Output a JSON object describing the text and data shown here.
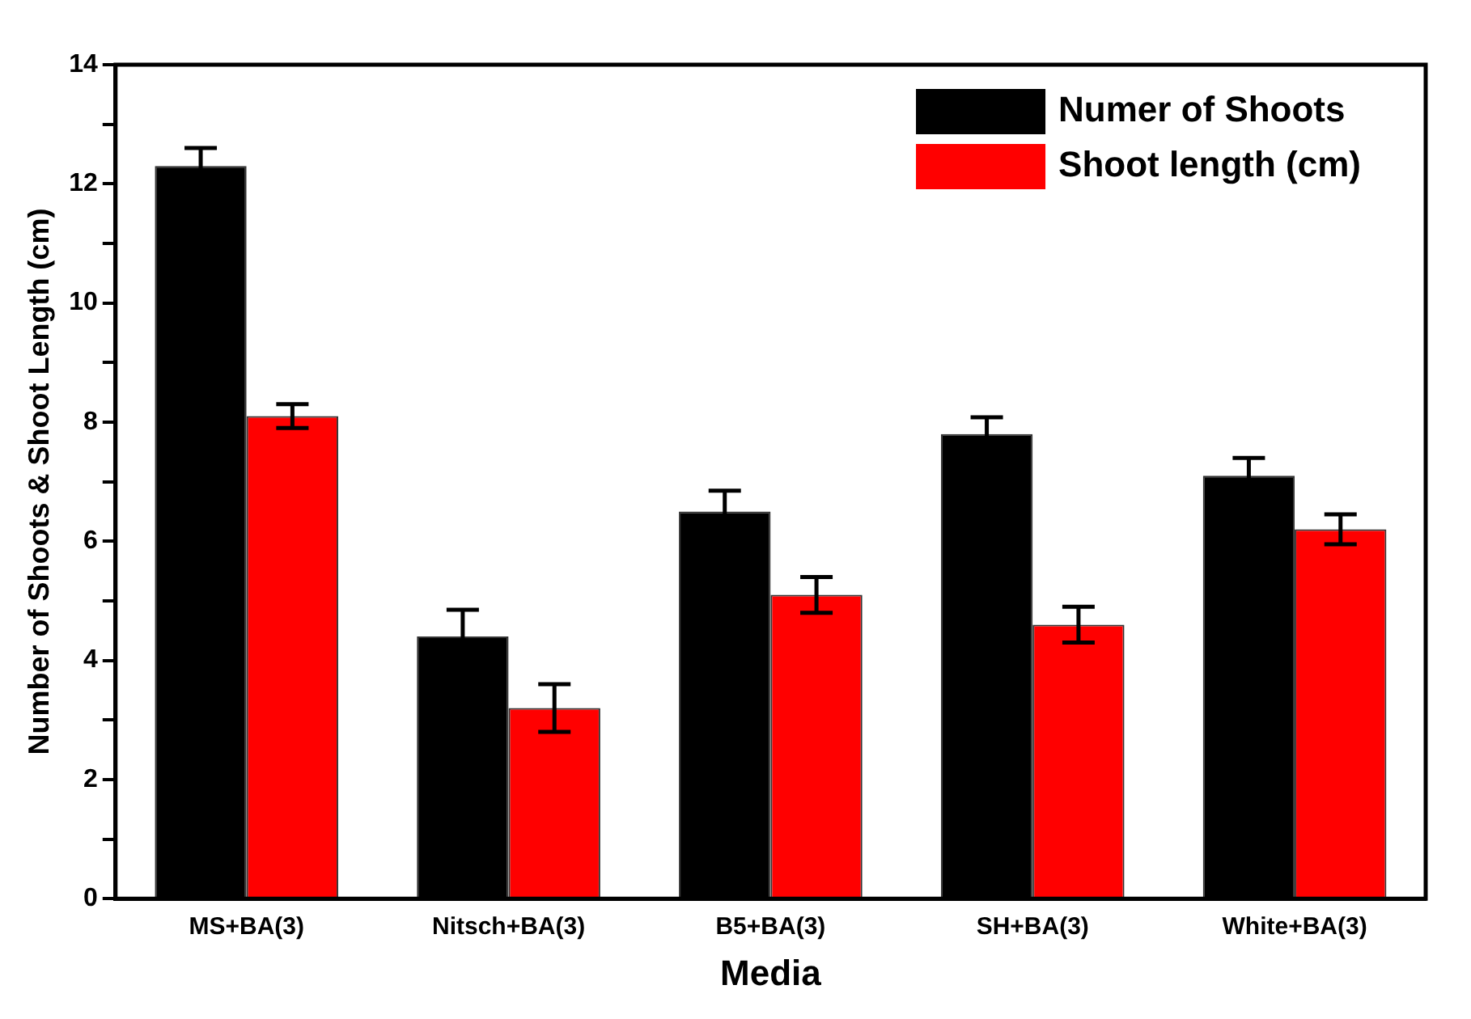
{
  "chart_data": {
    "type": "bar",
    "xlabel": "Media",
    "ylabel": "Number of Shoots & Shoot Length (cm)",
    "categories": [
      "MS+BA(3)",
      "Nitsch+BA(3)",
      "B5+BA(3)",
      "SH+BA(3)",
      "White+BA(3)"
    ],
    "series": [
      {
        "name": "Numer of Shoots",
        "color": "#000000",
        "values": [
          12.3,
          4.4,
          6.5,
          7.8,
          7.1
        ],
        "errors": [
          0.3,
          0.45,
          0.35,
          0.28,
          0.3
        ]
      },
      {
        "name": "Shoot length (cm)",
        "color": "#ff0000",
        "values": [
          8.1,
          3.2,
          5.1,
          4.6,
          6.2
        ],
        "errors": [
          0.2,
          0.4,
          0.3,
          0.3,
          0.25
        ]
      }
    ],
    "ylim": [
      0,
      14
    ],
    "yticks": [
      0,
      {
        "value": 1,
        "label": null
      },
      2,
      {
        "value": 3,
        "label": null
      },
      4,
      {
        "value": 5,
        "label": null
      },
      6,
      {
        "value": 7,
        "label": null
      },
      8,
      {
        "value": 9,
        "label": null
      },
      10,
      {
        "value": 11,
        "label": null
      },
      12,
      {
        "value": 13,
        "label": null
      },
      14
    ],
    "legend": "top right",
    "grid": false
  }
}
